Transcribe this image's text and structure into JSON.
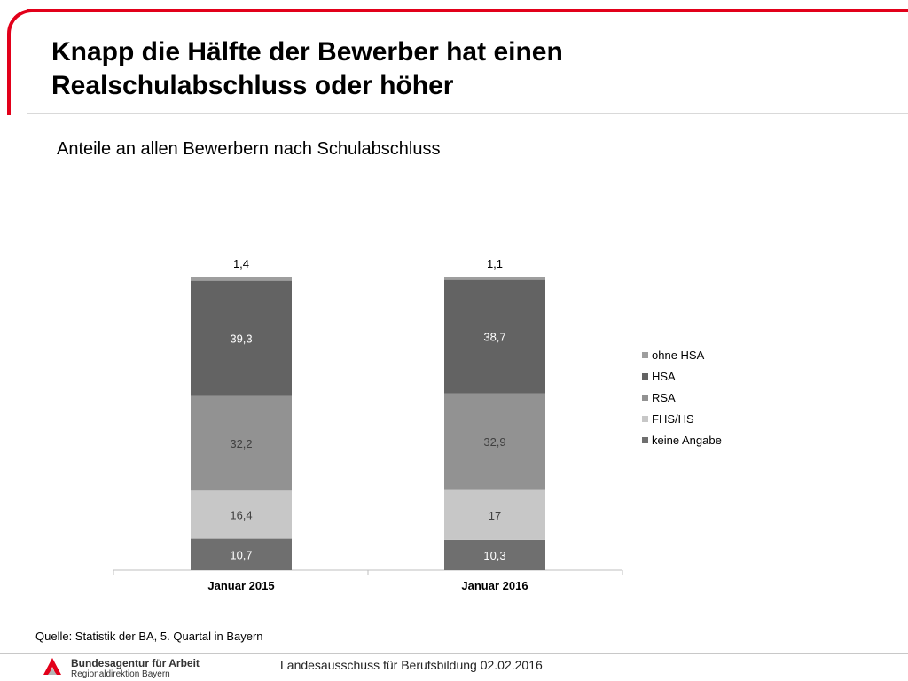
{
  "header": {
    "title_line1": "Knapp die Hälfte der Bewerber hat einen",
    "title_line2": "Realschulabschluss oder höher",
    "accent_color": "#e2001a"
  },
  "subtitle": "Anteile an allen Bewerbern nach Schulabschluss",
  "chart_data": {
    "type": "bar",
    "stacked": true,
    "categories": [
      "Januar 2015",
      "Januar 2016"
    ],
    "series": [
      {
        "name": "keine Angabe",
        "values": [
          10.7,
          10.3
        ],
        "labels": [
          "10,7",
          "10,3"
        ],
        "color": "#6f6f6f",
        "label_color": "#ffffff"
      },
      {
        "name": "FHS/HS",
        "values": [
          16.4,
          17
        ],
        "labels": [
          "16,4",
          "17"
        ],
        "color": "#c7c7c7",
        "label_color": "#404040"
      },
      {
        "name": "RSA",
        "values": [
          32.2,
          32.9
        ],
        "labels": [
          "32,2",
          "32,9"
        ],
        "color": "#929292",
        "label_color": "#404040"
      },
      {
        "name": "HSA",
        "values": [
          39.3,
          38.7
        ],
        "labels": [
          "39,3",
          "38,7"
        ],
        "color": "#636363",
        "label_color": "#ffffff"
      },
      {
        "name": "ohne HSA",
        "values": [
          1.4,
          1.1
        ],
        "labels": [
          "1,4",
          "1,1"
        ],
        "color": "#9e9e9e",
        "label_color": "#000000"
      }
    ],
    "legend_order": [
      "ohne HSA",
      "HSA",
      "RSA",
      "FHS/HS",
      "keine Angabe"
    ],
    "legend_position": "right",
    "ylim": [
      0,
      100
    ],
    "xlabel": "",
    "ylabel": ""
  },
  "source": "Quelle: Statistik der BA, 5. Quartal in Bayern",
  "footer": {
    "org_name": "Bundesagentur für Arbeit",
    "org_sub": "Regionaldirektion Bayern",
    "text": "Landesausschuss für Berufsbildung 02.02.2016"
  }
}
